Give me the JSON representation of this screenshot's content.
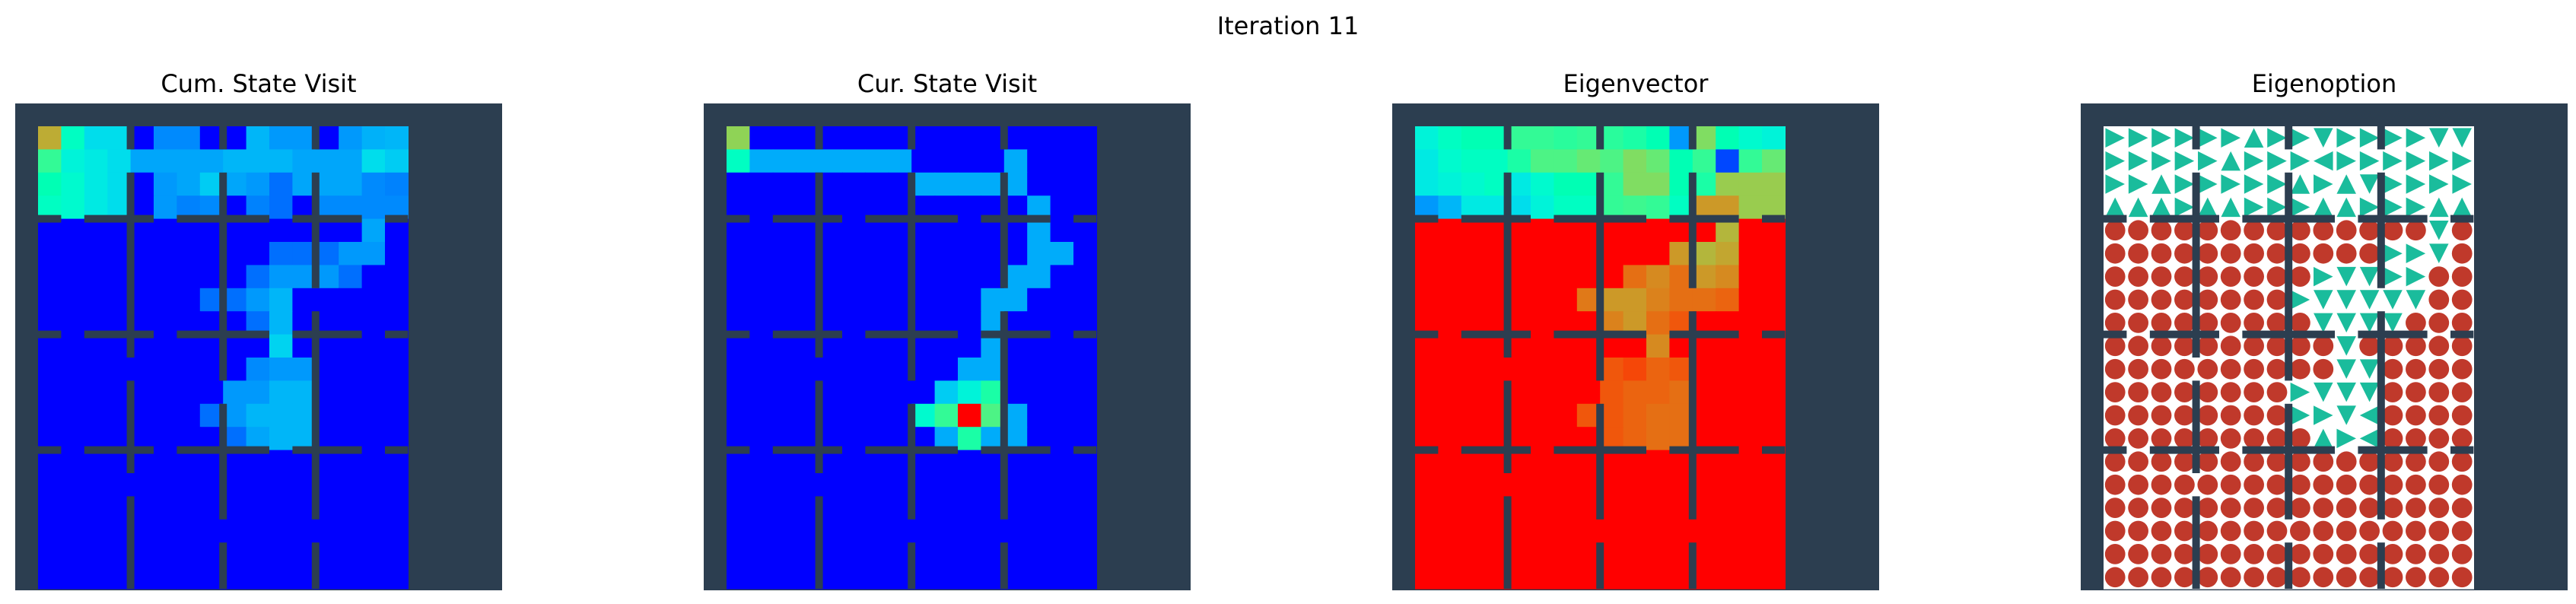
{
  "figure": {
    "title": "Iteration 11"
  },
  "colors": {
    "wall": "#2c3e50",
    "free_bg": "#ffffff",
    "arrow": "#1abc9c",
    "stop": "#c0392b",
    "colormap": "rainbow"
  },
  "chart_data": [
    {
      "type": "heatmap",
      "title": "Cum. State Visit",
      "grid": "wall-map",
      "values": [
        [
          0.87,
          0.45,
          0.25,
          0.25,
          0,
          0.08,
          0.08,
          0,
          0,
          0.15,
          0.1,
          0.1,
          0,
          0.1,
          0.14,
          0.15
        ],
        [
          0.6,
          0.35,
          0.3,
          0.25,
          0.12,
          0.12,
          0.12,
          0.12,
          0.15,
          0.15,
          0.15,
          0.12,
          0.12,
          0.12,
          0.25,
          0.2
        ],
        [
          0.5,
          0.4,
          0.3,
          0.25,
          0,
          0.1,
          0.12,
          0.2,
          0.12,
          0.1,
          0.05,
          0.12,
          0.12,
          0.12,
          0.08,
          0.07
        ],
        [
          0.45,
          0.4,
          0.3,
          0.25,
          0,
          0.1,
          0.07,
          0.08,
          0,
          0.07,
          0.05,
          0,
          0.08,
          0.08,
          0.08,
          0.08
        ],
        [
          0,
          0,
          0,
          0,
          0,
          0,
          0,
          0,
          0,
          0,
          0,
          0,
          0,
          0,
          0.12,
          0
        ],
        [
          0,
          0,
          0,
          0,
          0,
          0,
          0,
          0,
          0,
          0,
          0.05,
          0.05,
          0.05,
          0.1,
          0.1,
          0
        ],
        [
          0,
          0,
          0,
          0,
          0,
          0,
          0,
          0,
          0,
          0.05,
          0.1,
          0.1,
          0.1,
          0.05,
          0,
          0
        ],
        [
          0,
          0,
          0,
          0,
          0,
          0,
          0,
          0.05,
          0.05,
          0.1,
          0.15,
          0,
          0,
          0,
          0,
          0
        ],
        [
          0,
          0,
          0,
          0,
          0,
          0,
          0,
          0,
          0,
          0.05,
          0.15,
          0,
          0,
          0,
          0,
          0
        ],
        [
          0,
          0,
          0,
          0,
          0,
          0,
          0,
          0,
          0,
          0,
          0.22,
          0,
          0,
          0,
          0,
          0
        ],
        [
          0,
          0,
          0,
          0,
          0,
          0,
          0,
          0,
          0,
          0.08,
          0.1,
          0.1,
          0,
          0,
          0,
          0
        ],
        [
          0,
          0,
          0,
          0,
          0,
          0,
          0,
          0,
          0.1,
          0.1,
          0.15,
          0.15,
          0,
          0,
          0,
          0
        ],
        [
          0,
          0,
          0,
          0,
          0,
          0,
          0,
          0.05,
          0.1,
          0.15,
          0.15,
          0.15,
          0,
          0,
          0,
          0
        ],
        [
          0,
          0,
          0,
          0,
          0,
          0,
          0,
          0,
          0.05,
          0.12,
          0.15,
          0.15,
          0,
          0,
          0,
          0
        ],
        [
          0,
          0,
          0,
          0,
          0,
          0,
          0,
          0,
          0,
          0,
          0,
          0,
          0,
          0,
          0,
          0
        ],
        [
          0,
          0,
          0,
          0,
          0,
          0,
          0,
          0,
          0,
          0,
          0,
          0,
          0,
          0,
          0,
          0
        ],
        [
          0,
          0,
          0,
          0,
          0,
          0,
          0,
          0,
          0,
          0,
          0,
          0,
          0,
          0,
          0,
          0
        ],
        [
          0,
          0,
          0,
          0,
          0,
          0,
          0,
          0,
          0,
          0,
          0,
          0,
          0,
          0,
          0,
          0
        ],
        [
          0,
          0,
          0,
          0,
          0,
          0,
          0,
          0,
          0,
          0,
          0,
          0,
          0,
          0,
          0,
          0
        ],
        [
          0,
          0,
          0,
          0,
          0,
          0,
          0,
          0,
          0,
          0,
          0,
          0,
          0,
          0,
          0,
          0
        ]
      ]
    },
    {
      "type": "heatmap",
      "title": "Cur. State Visit",
      "grid": "wall-map",
      "values": [
        [
          0.78,
          0,
          0,
          0,
          0,
          0,
          0,
          0,
          0,
          0,
          0,
          0,
          0,
          0,
          0,
          0
        ],
        [
          0.45,
          0.13,
          0.13,
          0.13,
          0.13,
          0.13,
          0.13,
          0.13,
          0,
          0,
          0,
          0,
          0.13,
          0,
          0,
          0
        ],
        [
          0,
          0,
          0,
          0,
          0,
          0,
          0,
          0,
          0.13,
          0.13,
          0.13,
          0.13,
          0.13,
          0,
          0,
          0
        ],
        [
          0,
          0,
          0,
          0,
          0,
          0,
          0,
          0,
          0,
          0,
          0,
          0,
          0,
          0.13,
          0,
          0
        ],
        [
          0,
          0,
          0,
          0,
          0,
          0,
          0,
          0,
          0,
          0,
          0,
          0,
          0,
          0.13,
          0,
          0
        ],
        [
          0,
          0,
          0,
          0,
          0,
          0,
          0,
          0,
          0,
          0,
          0,
          0,
          0,
          0.13,
          0.13,
          0
        ],
        [
          0,
          0,
          0,
          0,
          0,
          0,
          0,
          0,
          0,
          0,
          0,
          0,
          0.13,
          0.13,
          0,
          0
        ],
        [
          0,
          0,
          0,
          0,
          0,
          0,
          0,
          0,
          0,
          0,
          0,
          0.13,
          0.13,
          0,
          0,
          0
        ],
        [
          0,
          0,
          0,
          0,
          0,
          0,
          0,
          0,
          0,
          0,
          0,
          0.13,
          0,
          0,
          0,
          0
        ],
        [
          0,
          0,
          0,
          0,
          0,
          0,
          0,
          0,
          0,
          0,
          0,
          0.13,
          0,
          0,
          0,
          0
        ],
        [
          0,
          0,
          0,
          0,
          0,
          0,
          0,
          0,
          0,
          0,
          0.13,
          0.13,
          0,
          0,
          0,
          0
        ],
        [
          0,
          0,
          0,
          0,
          0,
          0,
          0,
          0,
          0,
          0.2,
          0.35,
          0.55,
          0,
          0,
          0,
          0
        ],
        [
          0,
          0,
          0,
          0,
          0,
          0,
          0,
          0,
          0.4,
          0.6,
          1.0,
          0.65,
          0.13,
          0,
          0,
          0
        ],
        [
          0,
          0,
          0,
          0,
          0,
          0,
          0,
          0,
          0,
          0.13,
          0.55,
          0.13,
          0.13,
          0,
          0,
          0
        ],
        [
          0,
          0,
          0,
          0,
          0,
          0,
          0,
          0,
          0,
          0,
          0,
          0,
          0,
          0,
          0,
          0
        ],
        [
          0,
          0,
          0,
          0,
          0,
          0,
          0,
          0,
          0,
          0,
          0,
          0,
          0,
          0,
          0,
          0
        ],
        [
          0,
          0,
          0,
          0,
          0,
          0,
          0,
          0,
          0,
          0,
          0,
          0,
          0,
          0,
          0,
          0
        ],
        [
          0,
          0,
          0,
          0,
          0,
          0,
          0,
          0,
          0,
          0,
          0,
          0,
          0,
          0,
          0,
          0
        ],
        [
          0,
          0,
          0,
          0,
          0,
          0,
          0,
          0,
          0,
          0,
          0,
          0,
          0,
          0,
          0,
          0
        ],
        [
          0,
          0,
          0,
          0,
          0,
          0,
          0,
          0,
          0,
          0,
          0,
          0,
          0,
          0,
          0,
          0
        ]
      ]
    },
    {
      "type": "heatmap",
      "title": "Eigenvector",
      "grid": "wall-map",
      "values": [
        [
          0.35,
          0.45,
          0.5,
          0.5,
          0.6,
          0.6,
          0.58,
          0.6,
          0.58,
          0.55,
          0.5,
          0.1,
          0.75,
          0.5,
          0.4,
          0.35
        ],
        [
          0.3,
          0.4,
          0.45,
          0.45,
          0.55,
          0.65,
          0.65,
          0.7,
          0.65,
          0.75,
          0.7,
          0.5,
          0.6,
          0.02,
          0.6,
          0.7
        ],
        [
          0.3,
          0.35,
          0.4,
          0.45,
          0.3,
          0.4,
          0.5,
          0.5,
          0.6,
          0.75,
          0.75,
          0.5,
          0.55,
          0.8,
          0.8,
          0.8
        ],
        [
          0.1,
          0.15,
          0.3,
          0.3,
          0.25,
          0.35,
          0.45,
          0.45,
          0.6,
          0.62,
          0.6,
          0.45,
          0.9,
          0.9,
          0.8,
          0.8
        ],
        [
          1,
          1,
          1,
          1,
          1,
          1,
          1,
          1,
          1,
          1,
          1,
          1,
          1,
          0.85,
          1,
          1
        ],
        [
          1,
          1,
          1,
          1,
          1,
          1,
          1,
          1,
          1,
          1,
          1,
          0.9,
          0.85,
          0.88,
          1,
          1
        ],
        [
          1,
          1,
          1,
          1,
          1,
          1,
          1,
          1,
          1,
          0.95,
          0.92,
          0.95,
          0.9,
          0.92,
          1,
          1
        ],
        [
          1,
          1,
          1,
          1,
          1,
          1,
          1,
          0.94,
          0.9,
          0.9,
          0.93,
          0.95,
          0.95,
          0.96,
          1,
          1
        ],
        [
          1,
          1,
          1,
          1,
          1,
          1,
          1,
          1,
          0.93,
          0.9,
          0.95,
          0.97,
          1,
          1,
          1,
          1
        ],
        [
          1,
          1,
          1,
          1,
          1,
          1,
          1,
          1,
          1,
          1,
          0.92,
          1,
          1,
          1,
          1,
          1
        ],
        [
          1,
          1,
          1,
          1,
          1,
          1,
          1,
          1,
          0.97,
          0.98,
          0.96,
          0.97,
          1,
          1,
          1,
          1
        ],
        [
          1,
          1,
          1,
          1,
          1,
          1,
          1,
          1,
          0.97,
          0.96,
          0.96,
          0.95,
          1,
          1,
          1,
          1
        ],
        [
          1,
          1,
          1,
          1,
          1,
          1,
          1,
          0.97,
          0.97,
          0.96,
          0.95,
          0.95,
          1,
          1,
          1,
          1
        ],
        [
          1,
          1,
          1,
          1,
          1,
          1,
          1,
          1,
          0.97,
          0.96,
          0.95,
          0.95,
          1,
          1,
          1,
          1
        ],
        [
          1,
          1,
          1,
          1,
          1,
          1,
          1,
          1,
          1,
          1,
          1,
          1,
          1,
          1,
          1,
          1
        ],
        [
          1,
          1,
          1,
          1,
          1,
          1,
          1,
          1,
          1,
          1,
          1,
          1,
          1,
          1,
          1,
          1
        ],
        [
          1,
          1,
          1,
          1,
          1,
          1,
          1,
          1,
          1,
          1,
          1,
          1,
          1,
          1,
          1,
          1
        ],
        [
          1,
          1,
          1,
          1,
          1,
          1,
          1,
          1,
          1,
          1,
          1,
          1,
          1,
          1,
          1,
          1
        ],
        [
          1,
          1,
          1,
          1,
          1,
          1,
          1,
          1,
          1,
          1,
          1,
          1,
          1,
          1,
          1,
          1
        ],
        [
          1,
          1,
          1,
          1,
          1,
          1,
          1,
          1,
          1,
          1,
          1,
          1,
          1,
          1,
          1,
          1
        ]
      ]
    },
    {
      "type": "policy",
      "title": "Eigenoption",
      "symbols": {
        "R": "arrow-right",
        "L": "arrow-left",
        "U": "arrow-up",
        "D": "arrow-down",
        "T": "terminate"
      },
      "actions": [
        "RRRRRRURRDRRRRDD",
        "RRRRRURRRLRRRRRR",
        "RRURRRRRURUDRRRR",
        "UUURUURRRUURRRUU",
        "TTTTTTTTTTTTTTDT",
        "TTTTTTTTTTTTRRDT",
        "TTTTTTTTTRDDRRTT",
        "TTTTTTTTRDDDDDTT",
        "TTTTTTTTTDDDDTTT",
        "TTTTTTTTTTDTTTTT",
        "TTTTTTTTTTDDTTTT",
        "TTTTTTTTRDDDTTTT",
        "TTTTTTTTRRDLTTTT",
        "TTTTTTTTTURLTTTT",
        "TTTTTTTTTTTTTTTT",
        "TTTTTTTTTTTTTTTT",
        "TTTTTTTTTTTTTTTT",
        "TTTTTTTTTTTTTTTT",
        "TTTTTTTTTTTTTTTT",
        "TTTTTTTTTTTTTTTT"
      ]
    }
  ]
}
